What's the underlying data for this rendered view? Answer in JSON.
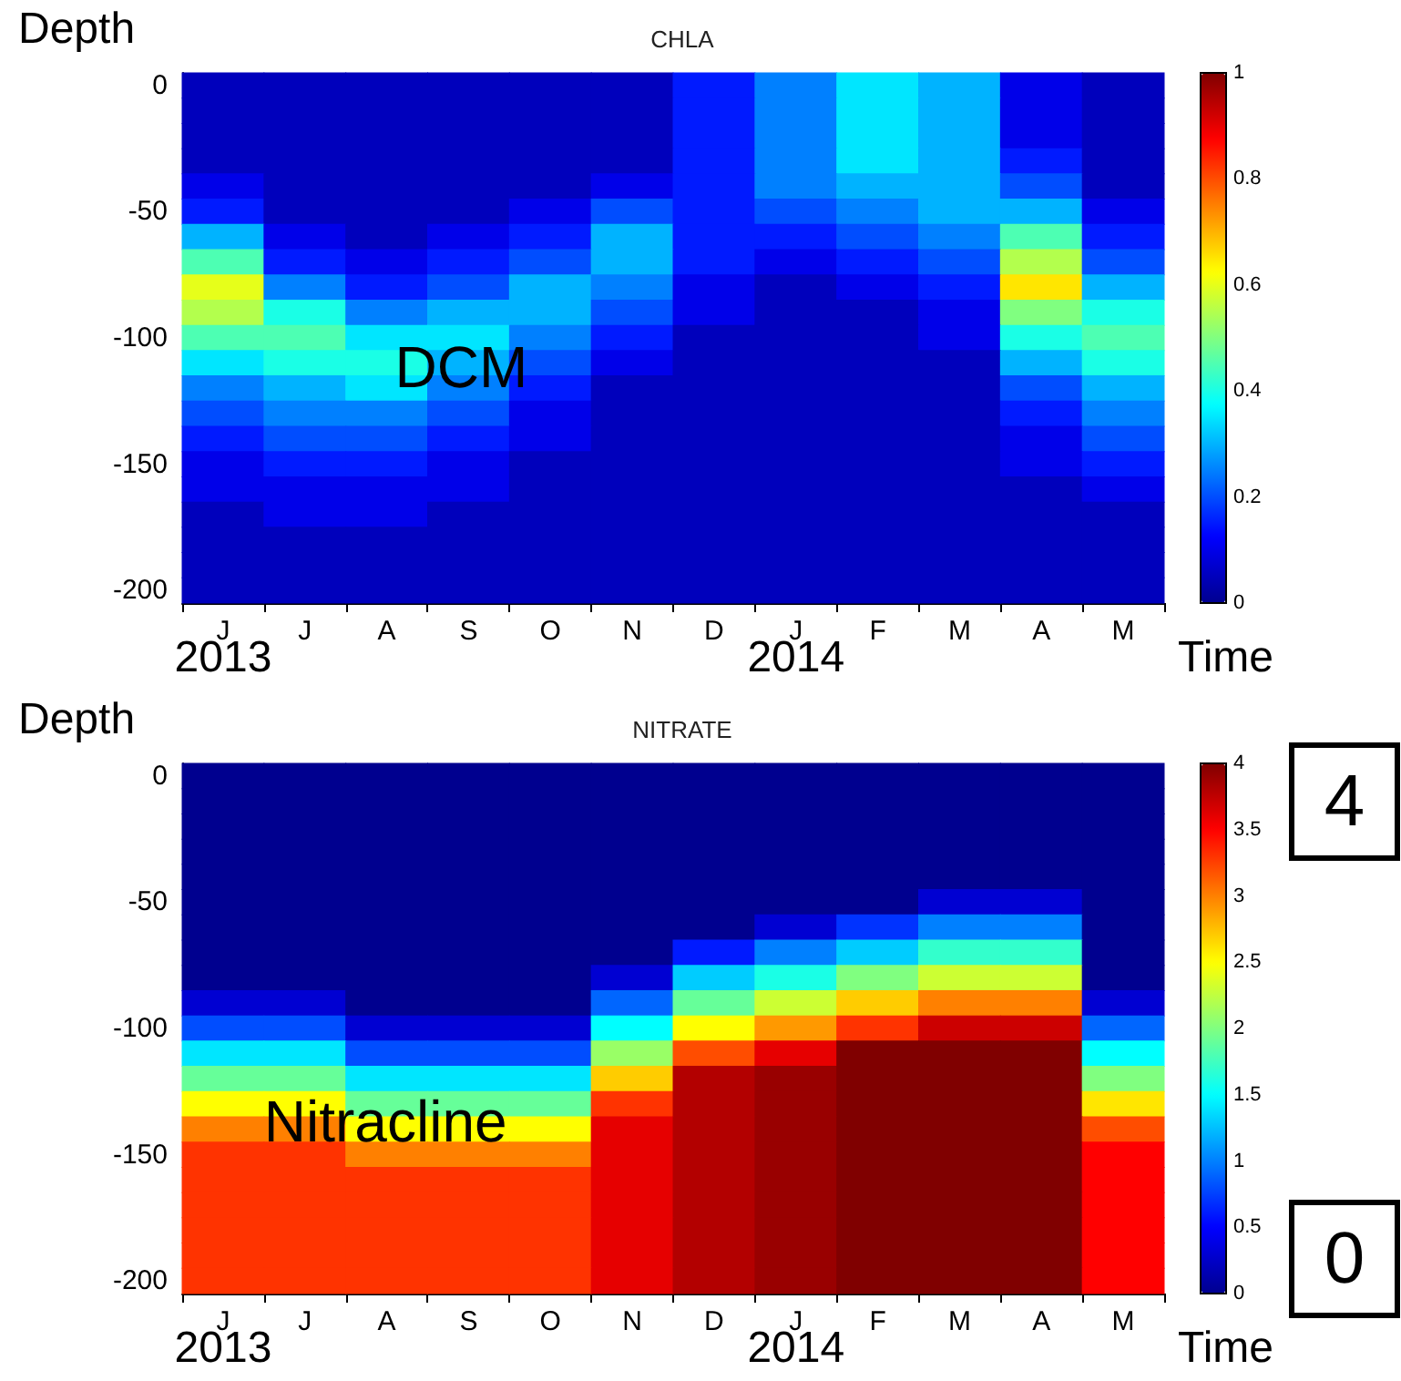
{
  "chart_data": [
    {
      "type": "heatmap",
      "title": "CHLA",
      "xlabel": "Time",
      "ylabel": "Depth",
      "annotations": [
        "DCM",
        "2013",
        "2014"
      ],
      "categories": [
        "J",
        "J",
        "A",
        "S",
        "O",
        "N",
        "D",
        "J",
        "F",
        "M",
        "A",
        "M"
      ],
      "y_categories": [
        "0",
        null,
        null,
        null,
        null,
        "-50",
        null,
        null,
        null,
        null,
        "-100",
        null,
        null,
        null,
        null,
        "-150",
        null,
        null,
        null,
        null,
        "-200"
      ],
      "clim": [
        0,
        1
      ],
      "cticks": [
        0,
        0.2,
        0.4,
        0.6,
        0.8,
        1
      ],
      "cells": [
        [
          0.05,
          0.05,
          0.05,
          0.05,
          0.05,
          0.05,
          0.15,
          0.25,
          0.35,
          0.3,
          0.1,
          0.05
        ],
        [
          0.05,
          0.05,
          0.05,
          0.05,
          0.05,
          0.05,
          0.15,
          0.25,
          0.35,
          0.3,
          0.1,
          0.05
        ],
        [
          0.05,
          0.05,
          0.05,
          0.05,
          0.05,
          0.05,
          0.15,
          0.25,
          0.35,
          0.3,
          0.1,
          0.05
        ],
        [
          0.05,
          0.05,
          0.05,
          0.05,
          0.05,
          0.05,
          0.15,
          0.25,
          0.35,
          0.3,
          0.15,
          0.05
        ],
        [
          0.1,
          0.05,
          0.05,
          0.05,
          0.05,
          0.1,
          0.15,
          0.25,
          0.3,
          0.3,
          0.2,
          0.05
        ],
        [
          0.15,
          0.05,
          0.05,
          0.05,
          0.1,
          0.2,
          0.15,
          0.2,
          0.25,
          0.3,
          0.3,
          0.1
        ],
        [
          0.3,
          0.1,
          0.05,
          0.1,
          0.15,
          0.3,
          0.15,
          0.15,
          0.2,
          0.25,
          0.45,
          0.15
        ],
        [
          0.45,
          0.15,
          0.1,
          0.15,
          0.2,
          0.3,
          0.15,
          0.1,
          0.15,
          0.2,
          0.55,
          0.2
        ],
        [
          0.6,
          0.25,
          0.15,
          0.2,
          0.3,
          0.25,
          0.1,
          0.05,
          0.1,
          0.15,
          0.65,
          0.3
        ],
        [
          0.55,
          0.4,
          0.25,
          0.3,
          0.3,
          0.2,
          0.1,
          0.05,
          0.05,
          0.1,
          0.5,
          0.4
        ],
        [
          0.45,
          0.45,
          0.35,
          0.35,
          0.25,
          0.15,
          0.05,
          0.05,
          0.05,
          0.1,
          0.4,
          0.45
        ],
        [
          0.35,
          0.4,
          0.4,
          0.3,
          0.2,
          0.1,
          0.05,
          0.05,
          0.05,
          0.05,
          0.3,
          0.4
        ],
        [
          0.25,
          0.3,
          0.35,
          0.25,
          0.15,
          0.05,
          0.05,
          0.05,
          0.05,
          0.05,
          0.2,
          0.3
        ],
        [
          0.2,
          0.25,
          0.25,
          0.2,
          0.1,
          0.05,
          0.05,
          0.05,
          0.05,
          0.05,
          0.15,
          0.25
        ],
        [
          0.15,
          0.2,
          0.2,
          0.15,
          0.1,
          0.05,
          0.05,
          0.05,
          0.05,
          0.05,
          0.1,
          0.2
        ],
        [
          0.1,
          0.15,
          0.15,
          0.1,
          0.05,
          0.05,
          0.05,
          0.05,
          0.05,
          0.05,
          0.1,
          0.15
        ],
        [
          0.1,
          0.1,
          0.1,
          0.1,
          0.05,
          0.05,
          0.05,
          0.05,
          0.05,
          0.05,
          0.05,
          0.1
        ],
        [
          0.05,
          0.1,
          0.1,
          0.05,
          0.05,
          0.05,
          0.05,
          0.05,
          0.05,
          0.05,
          0.05,
          0.05
        ],
        [
          0.05,
          0.05,
          0.05,
          0.05,
          0.05,
          0.05,
          0.05,
          0.05,
          0.05,
          0.05,
          0.05,
          0.05
        ],
        [
          0.05,
          0.05,
          0.05,
          0.05,
          0.05,
          0.05,
          0.05,
          0.05,
          0.05,
          0.05,
          0.05,
          0.05
        ],
        [
          0.05,
          0.05,
          0.05,
          0.05,
          0.05,
          0.05,
          0.05,
          0.05,
          0.05,
          0.05,
          0.05,
          0.05
        ]
      ]
    },
    {
      "type": "heatmap",
      "title": "NITRATE",
      "xlabel": "Time",
      "ylabel": "Depth",
      "annotations": [
        "Nitracline",
        "2013",
        "2014",
        "4",
        "0"
      ],
      "categories": [
        "J",
        "J",
        "A",
        "S",
        "O",
        "N",
        "D",
        "J",
        "F",
        "M",
        "A",
        "M"
      ],
      "y_categories": [
        "0",
        null,
        null,
        null,
        null,
        "-50",
        null,
        null,
        null,
        null,
        "-100",
        null,
        null,
        null,
        null,
        "-150",
        null,
        null,
        null,
        null,
        "-200"
      ],
      "clim": [
        0,
        4
      ],
      "cticks": [
        0,
        0.5,
        1,
        1.5,
        2,
        2.5,
        3,
        3.5,
        4
      ],
      "cells": [
        [
          0,
          0,
          0,
          0,
          0,
          0,
          0,
          0,
          0,
          0,
          0,
          0
        ],
        [
          0,
          0,
          0,
          0,
          0,
          0,
          0,
          0,
          0,
          0,
          0,
          0
        ],
        [
          0,
          0,
          0,
          0,
          0,
          0,
          0,
          0,
          0,
          0,
          0,
          0
        ],
        [
          0,
          0,
          0,
          0,
          0,
          0,
          0,
          0,
          0,
          0,
          0,
          0
        ],
        [
          0,
          0,
          0,
          0,
          0,
          0,
          0,
          0,
          0,
          0,
          0,
          0
        ],
        [
          0,
          0,
          0,
          0,
          0,
          0,
          0,
          0,
          0,
          0.3,
          0.3,
          0
        ],
        [
          0,
          0,
          0,
          0,
          0,
          0,
          0,
          0.3,
          0.7,
          1.0,
          1.0,
          0
        ],
        [
          0,
          0,
          0,
          0,
          0,
          0,
          0.6,
          1.0,
          1.3,
          1.7,
          1.7,
          0
        ],
        [
          0,
          0,
          0,
          0,
          0,
          0.3,
          1.3,
          1.6,
          2.0,
          2.3,
          2.3,
          0
        ],
        [
          0.3,
          0.3,
          0,
          0,
          0,
          0.9,
          1.9,
          2.3,
          2.7,
          3.0,
          3.0,
          0.3
        ],
        [
          0.8,
          0.8,
          0.3,
          0.3,
          0.3,
          1.5,
          2.5,
          2.9,
          3.3,
          3.7,
          3.7,
          0.9
        ],
        [
          1.4,
          1.4,
          0.8,
          0.8,
          0.8,
          2.1,
          3.2,
          3.6,
          4,
          4,
          4,
          1.5
        ],
        [
          1.9,
          1.9,
          1.4,
          1.4,
          1.4,
          2.7,
          3.8,
          3.9,
          4,
          4,
          4,
          2.0
        ],
        [
          2.5,
          2.5,
          1.9,
          1.9,
          1.9,
          3.3,
          3.8,
          3.9,
          4,
          4,
          4,
          2.6
        ],
        [
          3.0,
          3.0,
          2.5,
          2.5,
          2.5,
          3.6,
          3.8,
          3.9,
          4,
          4,
          4,
          3.2
        ],
        [
          3.3,
          3.3,
          3.0,
          3.0,
          3.0,
          3.6,
          3.8,
          3.9,
          4,
          4,
          4,
          3.5
        ],
        [
          3.3,
          3.3,
          3.3,
          3.3,
          3.3,
          3.6,
          3.8,
          3.9,
          4,
          4,
          4,
          3.5
        ],
        [
          3.3,
          3.3,
          3.3,
          3.3,
          3.3,
          3.6,
          3.8,
          3.9,
          4,
          4,
          4,
          3.5
        ],
        [
          3.3,
          3.3,
          3.3,
          3.3,
          3.3,
          3.6,
          3.8,
          3.9,
          4,
          4,
          4,
          3.5
        ],
        [
          3.3,
          3.3,
          3.3,
          3.3,
          3.3,
          3.6,
          3.8,
          3.9,
          4,
          4,
          4,
          3.5
        ],
        [
          3.3,
          3.3,
          3.3,
          3.3,
          3.3,
          3.6,
          3.8,
          3.9,
          4,
          4,
          4,
          3.5
        ]
      ]
    }
  ]
}
